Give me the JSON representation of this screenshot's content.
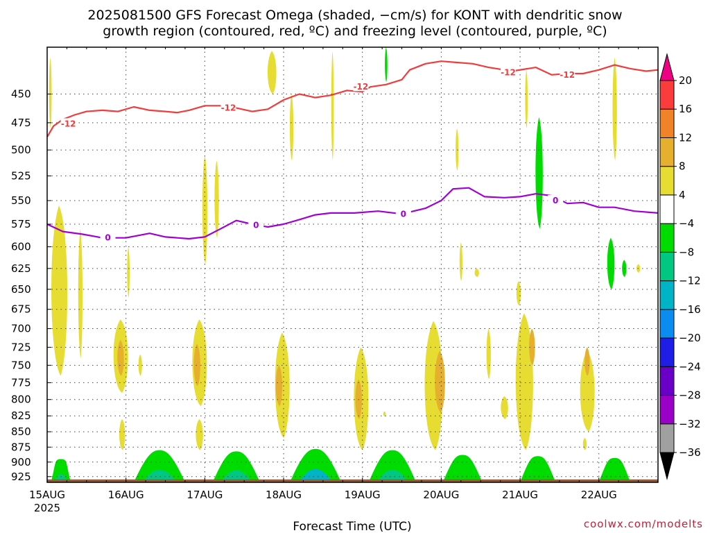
{
  "title_line1": "2025081500 GFS Forecast Omega (shaded, −cm/s) for KONT with dendritic snow",
  "title_line2": "growth region (contoured, red, ºC) and freezing level (contoured, purple, ºC)",
  "credit": "coolwx.com/modelts",
  "chart_data": {
    "type": "heatmap",
    "xlabel": "Forecast Time (UTC)",
    "ylabel": "",
    "x_unit": "days since 15AUG 00Z",
    "xlim": [
      0,
      7.75
    ],
    "ylim": [
      935,
      412
    ],
    "yscale": "log",
    "x_ticks": [
      {
        "value": 0,
        "label": "15AUG",
        "sublabel": "2025"
      },
      {
        "value": 1,
        "label": "16AUG"
      },
      {
        "value": 2,
        "label": "17AUG"
      },
      {
        "value": 3,
        "label": "18AUG"
      },
      {
        "value": 4,
        "label": "19AUG"
      },
      {
        "value": 5,
        "label": "20AUG"
      },
      {
        "value": 6,
        "label": "21AUG"
      },
      {
        "value": 7,
        "label": "22AUG"
      }
    ],
    "y_ticks": [
      450,
      475,
      500,
      525,
      550,
      575,
      600,
      625,
      650,
      675,
      700,
      725,
      750,
      775,
      800,
      825,
      850,
      875,
      900,
      925
    ],
    "grid": true,
    "colorbar": {
      "levels": [
        -36,
        -32,
        -28,
        -24,
        -20,
        -16,
        -12,
        -8,
        -4,
        4,
        8,
        12,
        16,
        20
      ],
      "colors": [
        "#000000",
        "#a0a0a0",
        "#9b00c8",
        "#6a00c8",
        "#1e1ee6",
        "#0a8cf0",
        "#00b4c8",
        "#00c882",
        "#00dc00",
        "#ffffff",
        "#e6dc32",
        "#e6af2d",
        "#f08228",
        "#fa3c3c",
        "#f00082"
      ]
    },
    "series": [
      {
        "name": "-12",
        "color": "#f03c3c",
        "points": [
          [
            0,
            488
          ],
          [
            0.08,
            478
          ],
          [
            0.2,
            472
          ],
          [
            0.35,
            468
          ],
          [
            0.5,
            465
          ],
          [
            0.7,
            464
          ],
          [
            0.9,
            465
          ],
          [
            1.1,
            461
          ],
          [
            1.3,
            464
          ],
          [
            1.5,
            465
          ],
          [
            1.65,
            466
          ],
          [
            1.8,
            464
          ],
          [
            2.0,
            460
          ],
          [
            2.2,
            460
          ],
          [
            2.4,
            462
          ],
          [
            2.6,
            465
          ],
          [
            2.8,
            463
          ],
          [
            3.0,
            455
          ],
          [
            3.2,
            450
          ],
          [
            3.4,
            453
          ],
          [
            3.6,
            451
          ],
          [
            3.8,
            447
          ],
          [
            4.0,
            448
          ],
          [
            4.1,
            444
          ],
          [
            4.3,
            442
          ],
          [
            4.5,
            438
          ],
          [
            4.6,
            430
          ],
          [
            4.8,
            425
          ],
          [
            5.0,
            423
          ],
          [
            5.2,
            424
          ],
          [
            5.4,
            425
          ],
          [
            5.6,
            428
          ],
          [
            5.9,
            431
          ],
          [
            6.2,
            428
          ],
          [
            6.4,
            434
          ],
          [
            6.6,
            433
          ],
          [
            6.8,
            433
          ],
          [
            7.0,
            430
          ],
          [
            7.2,
            426
          ],
          [
            7.4,
            429
          ],
          [
            7.6,
            431
          ],
          [
            7.75,
            430
          ]
        ],
        "labels": [
          [
            0.27,
            476
          ],
          [
            2.3,
            462
          ],
          [
            3.98,
            444
          ],
          [
            5.85,
            432
          ],
          [
            6.6,
            434
          ]
        ]
      },
      {
        "name": "0",
        "color": "#a000d2",
        "points": [
          [
            0,
            575
          ],
          [
            0.2,
            583
          ],
          [
            0.45,
            586
          ],
          [
            0.7,
            590
          ],
          [
            1.0,
            590
          ],
          [
            1.3,
            585
          ],
          [
            1.5,
            589
          ],
          [
            1.8,
            591
          ],
          [
            2.0,
            589
          ],
          [
            2.2,
            580
          ],
          [
            2.4,
            571
          ],
          [
            2.6,
            575
          ],
          [
            2.8,
            578
          ],
          [
            3.0,
            575
          ],
          [
            3.2,
            570
          ],
          [
            3.4,
            565
          ],
          [
            3.6,
            563
          ],
          [
            3.9,
            563
          ],
          [
            4.2,
            561
          ],
          [
            4.5,
            564
          ],
          [
            4.8,
            558
          ],
          [
            5.0,
            550
          ],
          [
            5.15,
            538
          ],
          [
            5.35,
            537
          ],
          [
            5.55,
            546
          ],
          [
            5.8,
            547
          ],
          [
            6.0,
            546
          ],
          [
            6.2,
            543
          ],
          [
            6.4,
            545
          ],
          [
            6.6,
            553
          ],
          [
            6.8,
            552
          ],
          [
            7.0,
            557
          ],
          [
            7.2,
            557
          ],
          [
            7.45,
            561
          ],
          [
            7.75,
            563
          ]
        ],
        "labels": [
          [
            0.77,
            590
          ],
          [
            2.65,
            576
          ],
          [
            4.52,
            564
          ],
          [
            6.45,
            550
          ]
        ]
      }
    ],
    "omega_regions": [
      {
        "x": 0.04,
        "p0": 420,
        "p1": 480,
        "w": 0.03,
        "v": 5
      },
      {
        "x": 0.15,
        "p0": 555,
        "p1": 765,
        "w": 0.22,
        "v": 5
      },
      {
        "x": 0.42,
        "p0": 580,
        "p1": 740,
        "w": 0.06,
        "v": 5
      },
      {
        "x": 0.93,
        "p0": 688,
        "p1": 790,
        "w": 0.2,
        "v": 6
      },
      {
        "x": 0.93,
        "p0": 715,
        "p1": 765,
        "w": 0.09,
        "v": 9
      },
      {
        "x": 1.18,
        "p0": 735,
        "p1": 765,
        "w": 0.05,
        "v": 5
      },
      {
        "x": 1.03,
        "p0": 600,
        "p1": 660,
        "w": 0.03,
        "v": 5
      },
      {
        "x": 0.95,
        "p0": 830,
        "p1": 880,
        "w": 0.08,
        "v": 5
      },
      {
        "x": 1.93,
        "p0": 688,
        "p1": 810,
        "w": 0.2,
        "v": 6
      },
      {
        "x": 1.9,
        "p0": 720,
        "p1": 780,
        "w": 0.09,
        "v": 9
      },
      {
        "x": 2.0,
        "p0": 505,
        "p1": 620,
        "w": 0.07,
        "v": 5
      },
      {
        "x": 2.15,
        "p0": 510,
        "p1": 590,
        "w": 0.06,
        "v": 5
      },
      {
        "x": 1.93,
        "p0": 830,
        "p1": 880,
        "w": 0.1,
        "v": 5
      },
      {
        "x": 2.85,
        "p0": 415,
        "p1": 450,
        "w": 0.12,
        "v": 5
      },
      {
        "x": 2.98,
        "p0": 705,
        "p1": 860,
        "w": 0.2,
        "v": 6
      },
      {
        "x": 2.94,
        "p0": 750,
        "p1": 810,
        "w": 0.09,
        "v": 9
      },
      {
        "x": 3.1,
        "p0": 450,
        "p1": 510,
        "w": 0.05,
        "v": 5
      },
      {
        "x": 3.98,
        "p0": 725,
        "p1": 880,
        "w": 0.2,
        "v": 6
      },
      {
        "x": 3.95,
        "p0": 770,
        "p1": 830,
        "w": 0.09,
        "v": 9
      },
      {
        "x": 3.62,
        "p0": 415,
        "p1": 510,
        "w": 0.03,
        "v": 5
      },
      {
        "x": 4.9,
        "p0": 690,
        "p1": 880,
        "w": 0.25,
        "v": 6
      },
      {
        "x": 4.98,
        "p0": 730,
        "p1": 820,
        "w": 0.14,
        "v": 10
      },
      {
        "x": 5.2,
        "p0": 480,
        "p1": 520,
        "w": 0.04,
        "v": 5
      },
      {
        "x": 5.25,
        "p0": 595,
        "p1": 640,
        "w": 0.04,
        "v": 5
      },
      {
        "x": 5.6,
        "p0": 700,
        "p1": 770,
        "w": 0.06,
        "v": 5
      },
      {
        "x": 5.8,
        "p0": 795,
        "p1": 830,
        "w": 0.1,
        "v": 5
      },
      {
        "x": 6.05,
        "p0": 680,
        "p1": 880,
        "w": 0.24,
        "v": 6
      },
      {
        "x": 6.15,
        "p0": 700,
        "p1": 750,
        "w": 0.08,
        "v": 10
      },
      {
        "x": 5.98,
        "p0": 640,
        "p1": 670,
        "w": 0.06,
        "v": 5
      },
      {
        "x": 6.85,
        "p0": 730,
        "p1": 850,
        "w": 0.2,
        "v": 5
      },
      {
        "x": 6.85,
        "p0": 725,
        "p1": 765,
        "w": 0.07,
        "v": 9
      },
      {
        "x": 7.2,
        "p0": 420,
        "p1": 510,
        "w": 0.06,
        "v": 5
      },
      {
        "x": 6.82,
        "p0": 860,
        "p1": 880,
        "w": 0.05,
        "v": 5
      },
      {
        "x": 6.08,
        "p0": 430,
        "p1": 480,
        "w": 0.03,
        "v": 5
      },
      {
        "x": 5.45,
        "p0": 625,
        "p1": 635,
        "w": 0.06,
        "v": 5
      },
      {
        "x": 7.5,
        "p0": 620,
        "p1": 630,
        "w": 0.05,
        "v": 5
      },
      {
        "x": 4.28,
        "p0": 818,
        "p1": 826,
        "w": 0.03,
        "v": 5
      },
      {
        "x": 6.24,
        "p0": 470,
        "p1": 580,
        "w": 0.1,
        "v": -6
      },
      {
        "x": 7.15,
        "p0": 590,
        "p1": 650,
        "w": 0.1,
        "v": -6
      },
      {
        "x": 7.32,
        "p0": 615,
        "p1": 635,
        "w": 0.06,
        "v": -6
      },
      {
        "x": 4.3,
        "p0": 412,
        "p1": 440,
        "w": 0.02,
        "v": -6
      }
    ],
    "low_level_mounds": [
      {
        "x": 0.05,
        "w": 0.25,
        "top": 895,
        "v": -10
      },
      {
        "x": 1.1,
        "w": 0.65,
        "top": 880,
        "v": -12
      },
      {
        "x": 2.1,
        "w": 0.6,
        "top": 882,
        "v": -12
      },
      {
        "x": 3.08,
        "w": 0.65,
        "top": 878,
        "v": -14
      },
      {
        "x": 4.08,
        "w": 0.6,
        "top": 880,
        "v": -12
      },
      {
        "x": 5.02,
        "w": 0.5,
        "top": 888,
        "v": -8
      },
      {
        "x": 6.0,
        "w": 0.45,
        "top": 890,
        "v": -6
      },
      {
        "x": 7.0,
        "w": 0.4,
        "top": 893,
        "v": -6
      }
    ]
  }
}
